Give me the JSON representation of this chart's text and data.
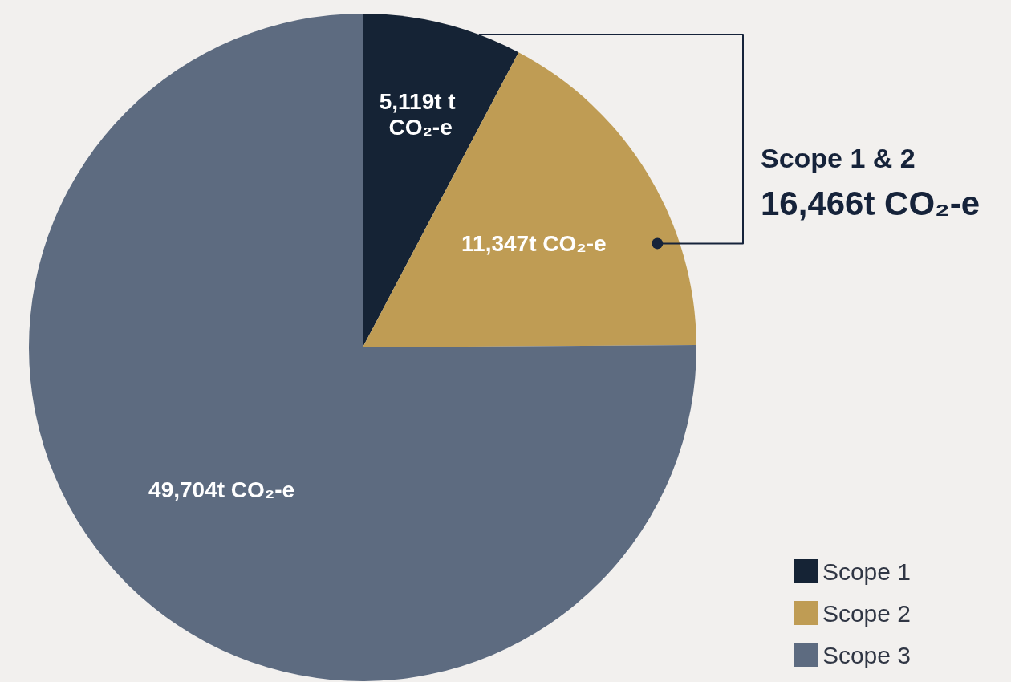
{
  "chart_data": {
    "type": "pie",
    "categories": [
      "Scope 1",
      "Scope 2",
      "Scope 3"
    ],
    "values": [
      5119,
      11347,
      49704
    ],
    "colors": [
      "#152335",
      "#bf9c54",
      "#5d6b80"
    ],
    "value_labels": [
      "5,119t t CO₂-e",
      "11,347t CO₂-e",
      "49,704t CO₂-e"
    ],
    "annotations": [
      "Scope 1 & 2",
      "16,466t CO₂-e"
    ],
    "legend": "bottom right"
  }
}
